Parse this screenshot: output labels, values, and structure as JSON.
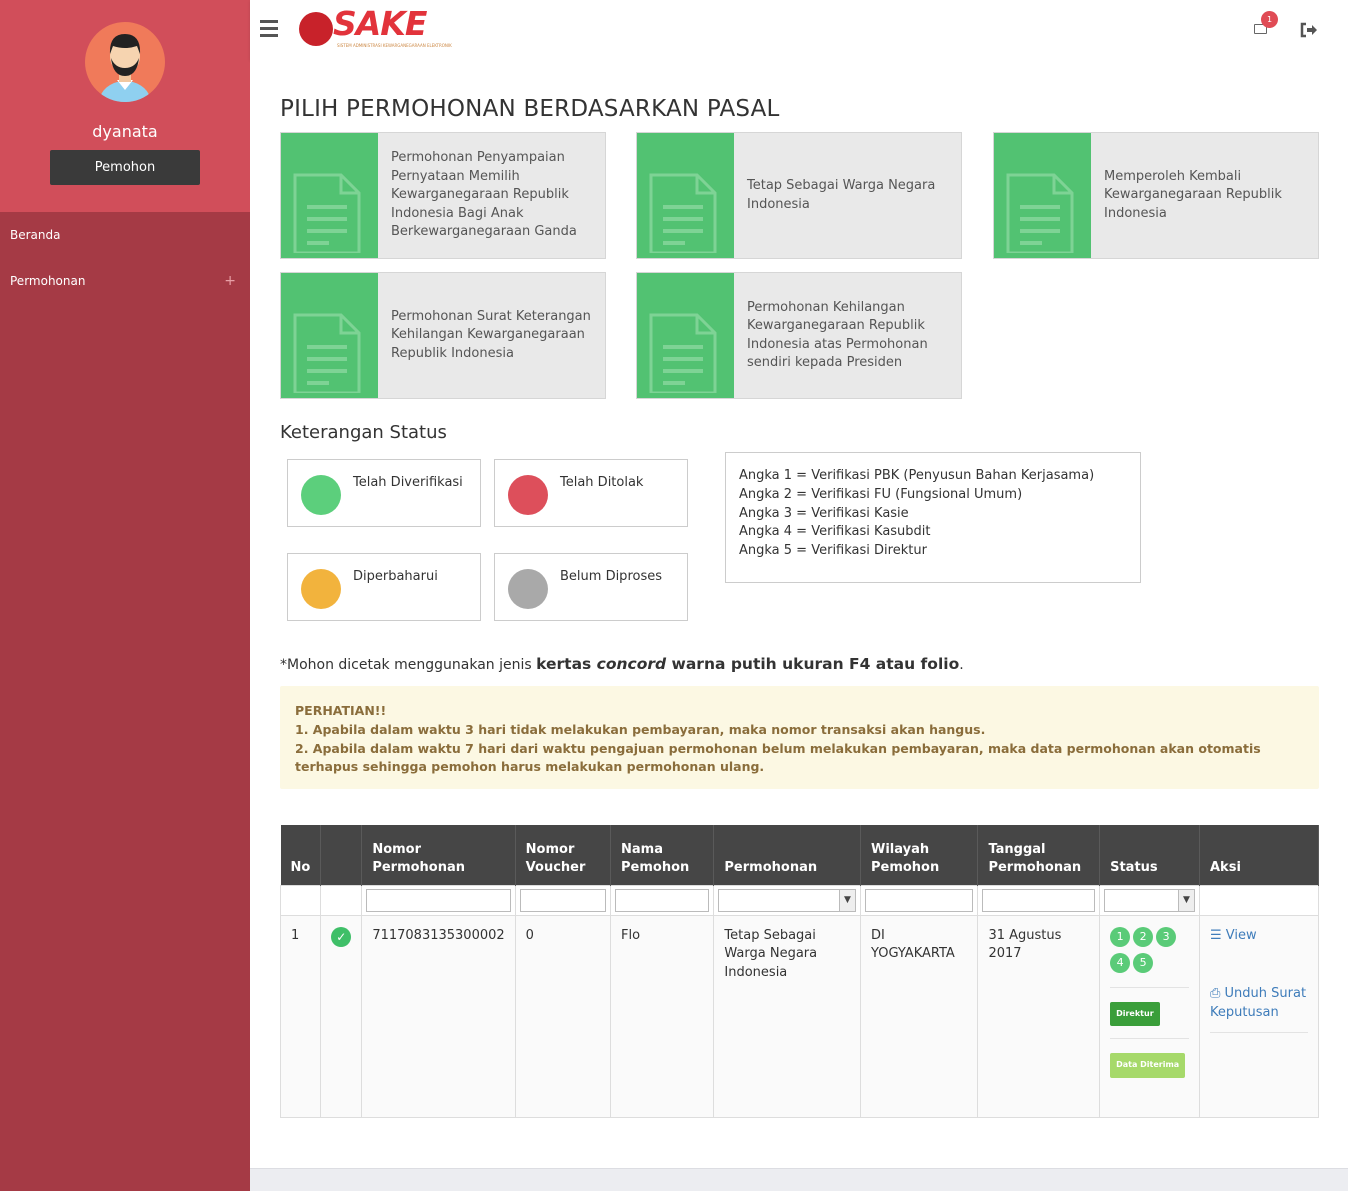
{
  "sidebar": {
    "username": "dyanata",
    "role": "Pemohon",
    "items": [
      {
        "label": "Beranda"
      },
      {
        "label": "Permohonan",
        "expand": "+"
      }
    ]
  },
  "header": {
    "logo_text": "SAKE",
    "logo_subtitle": "SISTEM ADMINISTRASI KEWARGANEGARAAN ELEKTRONIK",
    "mail_badge": "1"
  },
  "page_title": "PILIH PERMOHONAN BERDASARKAN PASAL",
  "cards": [
    "Permohonan Penyampaian Pernyataan Memilih Kewarganegaraan Republik Indonesia Bagi Anak Berkewarganegaraan Ganda",
    "Tetap Sebagai Warga Negara Indonesia",
    "Memperoleh Kembali Kewarganegaraan Republik Indonesia",
    "Permohonan Surat Keterangan Kehilangan Kewarganegaraan Republik Indonesia",
    "Permohonan Kehilangan Kewarganegaraan Republik Indonesia atas Permohonan sendiri kepada Presiden"
  ],
  "status": {
    "title": "Keterangan Status",
    "items": [
      {
        "label": "Telah Diverifikasi",
        "color": "#5ccf7c"
      },
      {
        "label": "Telah Ditolak",
        "color": "#dd4f5b"
      },
      {
        "label": "Diperbaharui",
        "color": "#f2b33d"
      },
      {
        "label": "Belum Diproses",
        "color": "#a9a9a9"
      }
    ],
    "legend": [
      "Angka 1 = Verifikasi PBK (Penyusun Bahan Kerjasama)",
      "Angka 2 = Verifikasi FU (Fungsional Umum)",
      "Angka 3 = Verifikasi Kasie",
      "Angka 4 = Verifikasi Kasubdit",
      "Angka 5 = Verifikasi Direktur"
    ]
  },
  "note": {
    "prefix": "*Mohon dicetak menggunakan jenis ",
    "bold1": "kertas ",
    "italic": "concord",
    "bold2": " warna putih ukuran F4 atau folio",
    "suffix": "."
  },
  "alert": {
    "title": "PERHATIAN!!",
    "line1": "1. Apabila dalam waktu 3 hari tidak melakukan pembayaran, maka nomor transaksi akan hangus.",
    "line2": "2. Apabila dalam waktu 7 hari dari waktu pengajuan permohonan belum melakukan pembayaran, maka data permohonan akan otomatis terhapus sehingga pemohon harus melakukan permohonan ulang."
  },
  "table": {
    "headers": {
      "no": "No",
      "nomor_1": "Nomor",
      "nomor_2": "Permohonan",
      "voucher_1": "Nomor",
      "voucher_2": "Voucher",
      "nama_1": "Nama",
      "nama_2": "Pemohon",
      "permohonan": "Permohonan",
      "wilayah_1": "Wilayah",
      "wilayah_2": "Pemohon",
      "tanggal_1": "Tanggal",
      "tanggal_2": "Permohonan",
      "status": "Status",
      "aksi": "Aksi"
    },
    "rows": [
      {
        "no": "1",
        "nomor": "7117083135300002",
        "voucher": "0",
        "nama": "Flo",
        "permohonan": "Tetap Sebagai Warga Negara Indonesia",
        "wilayah": "DI YOGYAKARTA",
        "tanggal": "31 Agustus 2017",
        "steps": [
          "1",
          "2",
          "3",
          "4",
          "5"
        ],
        "badge1": "Direktur",
        "badge1_color": "#3a9e3a",
        "badge2": "Data Diterima",
        "badge2_color": "#a6d96a",
        "action_view": "View",
        "action_download": "Unduh Surat Keputusan"
      }
    ]
  }
}
